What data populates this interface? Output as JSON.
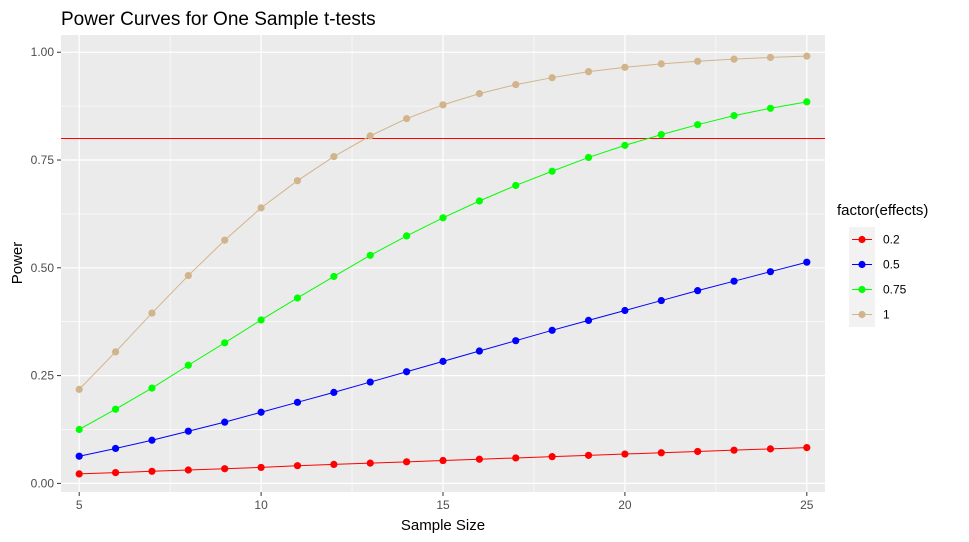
{
  "chart_data": {
    "type": "line",
    "title": "Power Curves for One Sample t-tests",
    "xlabel": "Sample Size",
    "ylabel": "Power",
    "xlim": [
      4.5,
      25.5
    ],
    "ylim": [
      -0.02,
      1.04
    ],
    "x_ticks": [
      5,
      10,
      15,
      20,
      25
    ],
    "x_tick_labels": [
      "5",
      "10",
      "15",
      "20",
      "25"
    ],
    "y_ticks": [
      0,
      0.25,
      0.5,
      0.75,
      1
    ],
    "y_tick_labels": [
      "0.00",
      "0.25",
      "0.50",
      "0.75",
      "1.00"
    ],
    "grid": true,
    "legend_title": "factor(effects)",
    "legend_position": "right",
    "reference_line": {
      "y": 0.8,
      "color": "#ff0000"
    },
    "x": [
      5,
      6,
      7,
      8,
      9,
      10,
      11,
      12,
      13,
      14,
      15,
      16,
      17,
      18,
      19,
      20,
      21,
      22,
      23,
      24,
      25
    ],
    "series": [
      {
        "name": "0.2",
        "color": "#ff0000",
        "values": [
          0.022,
          0.025,
          0.028,
          0.031,
          0.034,
          0.037,
          0.041,
          0.044,
          0.047,
          0.05,
          0.053,
          0.056,
          0.059,
          0.062,
          0.065,
          0.068,
          0.071,
          0.074,
          0.077,
          0.08,
          0.083
        ]
      },
      {
        "name": "0.5",
        "color": "#0000ff",
        "values": [
          0.063,
          0.081,
          0.1,
          0.121,
          0.142,
          0.165,
          0.188,
          0.211,
          0.235,
          0.259,
          0.283,
          0.307,
          0.331,
          0.355,
          0.378,
          0.401,
          0.424,
          0.447,
          0.469,
          0.491,
          0.513
        ]
      },
      {
        "name": "0.75",
        "color": "#00ff00",
        "values": [
          0.125,
          0.172,
          0.221,
          0.274,
          0.326,
          0.379,
          0.43,
          0.48,
          0.529,
          0.574,
          0.616,
          0.655,
          0.691,
          0.724,
          0.756,
          0.784,
          0.809,
          0.832,
          0.853,
          0.87,
          0.885
        ]
      },
      {
        "name": "1",
        "color": "#d2b48c",
        "values": [
          0.218,
          0.305,
          0.395,
          0.482,
          0.564,
          0.639,
          0.702,
          0.758,
          0.806,
          0.846,
          0.878,
          0.904,
          0.925,
          0.941,
          0.955,
          0.965,
          0.973,
          0.979,
          0.984,
          0.988,
          0.991
        ]
      }
    ]
  }
}
